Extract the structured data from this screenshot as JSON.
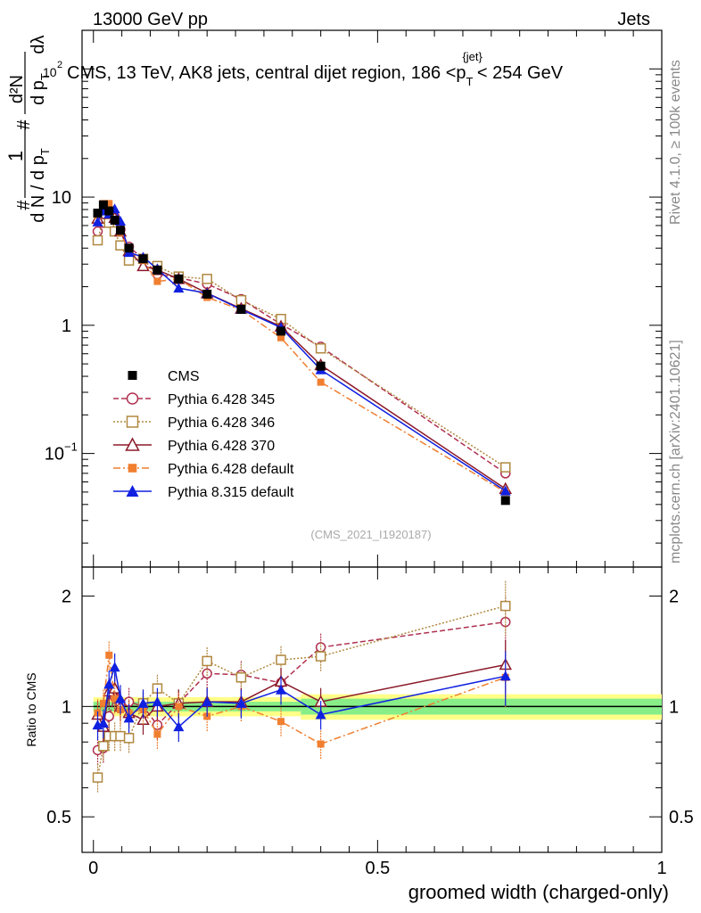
{
  "header": {
    "energy": "13000 GeV pp",
    "category": "Jets"
  },
  "side_labels": {
    "rivet": "Rivet 4.1.0, ≥ 100k events",
    "mcplots": "mcplots.cern.ch [arXiv:2401.10621]"
  },
  "chart_data": {
    "type": "line",
    "title": "CMS, 13 TeV, AK8 jets, central dijet region, 186 <p_T^{jet}< 254 GeV",
    "title_parts": {
      "main": "CMS, 13 TeV, AK8 jets, central dijet region, 186 <p",
      "sub": "T",
      "sup": "{jet}",
      "tail": "< 254 GeV"
    },
    "title_exponent_prefix": "10",
    "title_exponent": "2",
    "ylabel": "1/dN/dp_T d^2N/dp_T dλ",
    "ylabel_parts": {
      "num": "1",
      "den": "d N / d p",
      "den_sub": "T",
      "hash": "#",
      "d2n": "d²N",
      "dpt": "d p",
      "dpt_sub": "T",
      "dl": "dλ"
    },
    "xlabel": "groomed width (charged-only)",
    "ratio_ylabel": "Ratio to CMS",
    "watermark": "(CMS_2021_I1920187)",
    "xlim": [
      -0.02,
      1.0
    ],
    "ylim": [
      0.013,
      200
    ],
    "ratio_ylim": [
      0.4,
      2.4
    ],
    "x_ticks": [
      {
        "v": 0,
        "label": "0"
      },
      {
        "v": 0.5,
        "label": "0.5"
      },
      {
        "v": 1,
        "label": "1"
      }
    ],
    "y_ticks": [
      {
        "v": 10,
        "label": "10"
      },
      {
        "v": 1,
        "label": "1"
      },
      {
        "v": 0.1,
        "label": "10",
        "exp": "−1"
      }
    ],
    "ratio_ticks": [
      {
        "v": 2,
        "label": "2"
      },
      {
        "v": 1,
        "label": "1"
      },
      {
        "v": 0.5,
        "label": "0.5"
      }
    ],
    "x": [
      0.0075,
      0.0175,
      0.0275,
      0.0375,
      0.0475,
      0.0625,
      0.0875,
      0.1125,
      0.15,
      0.2,
      0.26,
      0.33,
      0.4,
      0.725
    ],
    "reference": {
      "name": "CMS",
      "values": [
        7.5,
        8.7,
        7.8,
        6.6,
        5.5,
        4.0,
        3.3,
        2.7,
        2.3,
        1.75,
        1.33,
        0.9,
        0.48,
        0.043
      ]
    },
    "band": [
      {
        "x0": 0.0,
        "x1": 0.365,
        "inner": 0.03,
        "outer": 0.06
      },
      {
        "x0": 0.365,
        "x1": 1.0,
        "inner": 0.05,
        "outer": 0.08
      }
    ],
    "series": [
      {
        "name": "Pythia 6.428 345",
        "color": "#b03050",
        "dash": "6,3",
        "marker": "open-circle",
        "values": [
          5.4,
          6.3,
          7.3,
          7.0,
          5.6,
          4.1,
          3.3,
          2.5,
          2.35,
          2.1,
          1.6,
          1.02,
          0.68,
          0.07
        ],
        "ratio": [
          0.76,
          0.77,
          0.94,
          1.06,
          1.02,
          1.03,
          1.0,
          0.89,
          1.02,
          1.23,
          1.22,
          1.16,
          1.45,
          1.7
        ]
      },
      {
        "name": "Pythia 6.428 346",
        "color": "#b08840",
        "dash": "2,2",
        "marker": "open-square",
        "values": [
          4.6,
          6.8,
          6.3,
          5.4,
          4.2,
          3.2,
          3.3,
          2.9,
          2.4,
          2.3,
          1.57,
          1.12,
          0.66,
          0.078
        ],
        "ratio": [
          0.64,
          0.78,
          0.83,
          0.83,
          0.83,
          0.82,
          1.02,
          1.12,
          1.02,
          1.33,
          1.2,
          1.34,
          1.37,
          1.88
        ]
      },
      {
        "name": "Pythia 6.428 370",
        "color": "#8b1a2a",
        "dash": "",
        "marker": "open-triangle",
        "values": [
          6.8,
          7.4,
          8.1,
          6.9,
          5.4,
          3.8,
          2.9,
          2.7,
          2.3,
          1.78,
          1.35,
          0.98,
          0.49,
          0.053
        ],
        "ratio": [
          0.95,
          0.88,
          1.1,
          1.12,
          1.0,
          0.96,
          0.92,
          1.0,
          1.02,
          1.03,
          1.03,
          1.17,
          1.03,
          1.3
        ]
      },
      {
        "name": "Pythia 6.428 default",
        "color": "#f07f30",
        "dash": "8,3,2,3",
        "marker": "filled-square",
        "values": [
          7.2,
          8.9,
          8.9,
          6.6,
          5.3,
          3.8,
          3.2,
          2.2,
          2.3,
          1.65,
          1.32,
          0.8,
          0.36,
          0.05
        ],
        "ratio": [
          0.96,
          1.02,
          1.38,
          1.05,
          0.98,
          0.96,
          0.98,
          0.84,
          1.0,
          0.94,
          1.0,
          0.91,
          0.79,
          1.2
        ]
      },
      {
        "name": "Pythia 8.315 default",
        "color": "#1020e0",
        "dash": "",
        "marker": "filled-triangle",
        "values": [
          6.4,
          7.8,
          7.4,
          8.1,
          6.5,
          3.7,
          3.4,
          2.75,
          1.95,
          1.78,
          1.33,
          0.96,
          0.45,
          0.051
        ],
        "ratio": [
          0.89,
          0.9,
          1.15,
          1.28,
          1.05,
          0.93,
          1.02,
          1.03,
          0.88,
          1.03,
          1.02,
          1.11,
          0.95,
          1.21
        ]
      }
    ]
  }
}
